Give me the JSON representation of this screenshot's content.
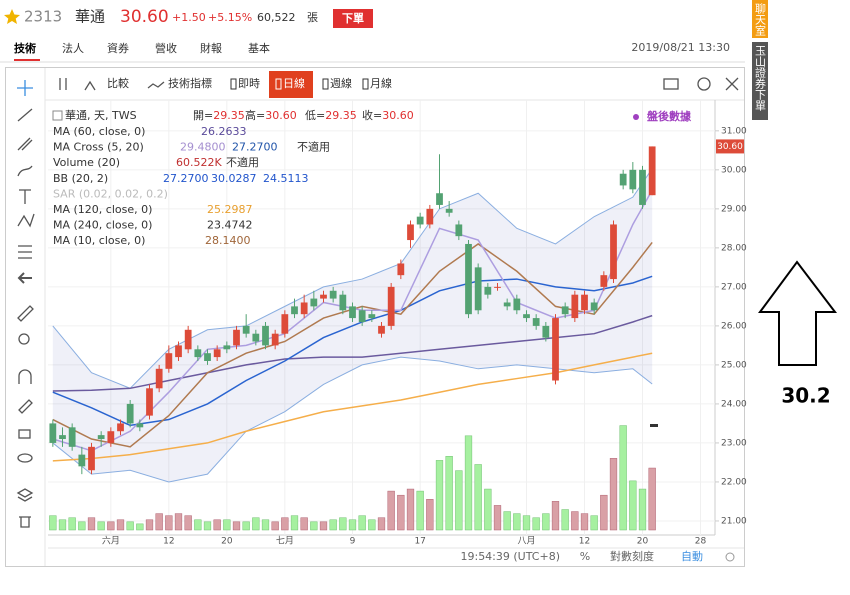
{
  "header": {
    "code": "2313",
    "name": "華通",
    "price": "30.60",
    "change": "+1.50",
    "percent": "+5.15%",
    "volume": "60,522",
    "volume_unit": "張",
    "order_button": "下單"
  },
  "tabs": [
    "技術",
    "法人",
    "資券",
    "營收",
    "財報",
    "基本"
  ],
  "datetime": "2019/08/21 13:30",
  "side": {
    "chat": "聊天室",
    "order": "玉山證券下單"
  },
  "toolbar": {
    "compare": "比較",
    "indicators": "技術指標",
    "intervals": [
      "即時",
      "日線",
      "週線",
      "月線"
    ],
    "active": 1
  },
  "annotation": "30.2",
  "chart_data": {
    "type": "candlestick",
    "title": "華通, 天, TWS",
    "ohlc_labels": [
      {
        "label": "開=",
        "value": "29.35"
      },
      {
        "label": "高=",
        "value": "30.60"
      },
      {
        "label": "低=",
        "value": "29.35"
      },
      {
        "label": "收=",
        "value": "30.60"
      }
    ],
    "after_hours": "盤後數據",
    "indicators": [
      {
        "label": "MA (60, close, 0)",
        "values": [
          "26.2633"
        ]
      },
      {
        "label": "MA Cross (5, 20)",
        "values": [
          "29.4800",
          "27.2700",
          "不適用"
        ]
      },
      {
        "label": "Volume (20)",
        "values": [
          "60.522K",
          "不適用"
        ]
      },
      {
        "label": "BB (20, 2)",
        "values": [
          "27.2700",
          "30.0287",
          "24.5113"
        ]
      },
      {
        "label": "SAR (0.02, 0.02, 0.2)",
        "values": []
      },
      {
        "label": "MA (120, close, 0)",
        "values": [
          "25.2987"
        ]
      },
      {
        "label": "MA (240, close, 0)",
        "values": [
          "23.4742"
        ]
      },
      {
        "label": "MA (10, close, 0)",
        "values": [
          "28.1400"
        ]
      }
    ],
    "open": [
      23.5,
      23.2,
      23.4,
      22.7,
      22.3,
      23.2,
      23.0,
      23.3,
      24.0,
      23.5,
      23.7,
      24.4,
      24.9,
      25.2,
      25.4,
      25.4,
      25.3,
      25.2,
      25.5,
      25.5,
      26.0,
      25.8,
      26.0,
      25.5,
      25.8,
      26.5,
      26.3,
      26.7,
      26.7,
      26.9,
      26.8,
      26.5,
      26.4,
      26.3,
      25.8,
      26.0,
      27.3,
      28.2,
      28.8,
      28.6,
      29.4,
      29.0,
      28.6,
      28.1,
      27.5,
      27.0,
      27.0,
      26.6,
      26.7,
      26.3,
      26.2,
      26.0,
      24.6,
      26.5,
      26.2,
      26.4,
      26.6,
      27.0,
      27.2,
      29.9,
      30.0,
      30.0,
      29.35
    ],
    "high": [
      23.6,
      23.4,
      23.5,
      22.9,
      23.0,
      23.3,
      23.4,
      23.6,
      24.1,
      23.6,
      24.5,
      25.0,
      25.5,
      25.6,
      26.0,
      25.5,
      25.4,
      25.5,
      25.6,
      26.0,
      26.3,
      25.9,
      26.1,
      25.9,
      26.4,
      26.7,
      26.8,
      26.9,
      26.9,
      27.0,
      26.9,
      26.6,
      26.5,
      26.4,
      26.1,
      27.1,
      27.7,
      28.7,
      28.9,
      29.1,
      30.4,
      29.2,
      28.7,
      28.2,
      27.6,
      27.1,
      27.1,
      26.7,
      26.8,
      26.4,
      26.3,
      26.1,
      26.3,
      26.6,
      26.9,
      26.9,
      26.7,
      27.4,
      28.7,
      30.0,
      30.2,
      30.1,
      30.6
    ],
    "low": [
      22.9,
      22.9,
      22.8,
      22.2,
      22.2,
      22.9,
      22.9,
      23.2,
      23.4,
      23.3,
      23.6,
      24.3,
      24.8,
      25.1,
      25.3,
      25.1,
      25.0,
      25.1,
      25.3,
      25.4,
      25.7,
      25.5,
      25.4,
      25.4,
      25.7,
      26.2,
      26.2,
      26.4,
      26.6,
      26.6,
      26.3,
      26.1,
      26.0,
      26.1,
      25.7,
      25.9,
      27.2,
      28.0,
      28.5,
      28.5,
      29.0,
      28.8,
      28.2,
      26.2,
      26.3,
      26.7,
      26.9,
      26.4,
      26.3,
      26.1,
      25.9,
      25.6,
      24.5,
      26.2,
      26.1,
      26.3,
      26.3,
      26.9,
      27.1,
      29.5,
      29.4,
      29.0,
      29.35
    ],
    "close": [
      23.0,
      23.1,
      22.9,
      22.4,
      22.9,
      23.1,
      23.3,
      23.5,
      23.5,
      23.4,
      24.4,
      24.9,
      25.3,
      25.5,
      25.9,
      25.2,
      25.1,
      25.4,
      25.4,
      25.9,
      25.8,
      25.6,
      25.5,
      25.8,
      26.3,
      26.3,
      26.6,
      26.5,
      26.8,
      26.7,
      26.4,
      26.2,
      26.1,
      26.2,
      26.0,
      27.0,
      27.6,
      28.6,
      28.6,
      29.0,
      29.1,
      28.9,
      28.3,
      26.3,
      26.4,
      26.8,
      27.0,
      26.5,
      26.4,
      26.2,
      26.0,
      25.7,
      26.2,
      26.3,
      26.8,
      26.8,
      26.4,
      27.3,
      28.6,
      29.6,
      29.5,
      29.1,
      30.6
    ],
    "volume": [
      14,
      10,
      12,
      8,
      12,
      8,
      8,
      10,
      8,
      6,
      10,
      16,
      14,
      16,
      14,
      10,
      8,
      10,
      10,
      8,
      8,
      12,
      10,
      8,
      12,
      14,
      12,
      8,
      8,
      10,
      12,
      10,
      14,
      10,
      12,
      38,
      34,
      40,
      38,
      30,
      68,
      72,
      58,
      92,
      64,
      40,
      24,
      18,
      16,
      14,
      12,
      16,
      28,
      20,
      18,
      16,
      14,
      34,
      70,
      102,
      48,
      40,
      60.522
    ],
    "up_color": "#dd4b39",
    "down_color": "#53a272",
    "volume_up_color": "#d9a0a6",
    "volume_down_color": "#a6f0a0",
    "lines": [
      {
        "name": "BB upper",
        "color": "#8aaee0",
        "x": [
          0,
          4,
          8,
          12,
          16,
          20,
          24,
          28,
          32,
          36,
          40,
          44,
          48,
          52,
          56,
          60,
          62
        ],
        "values": [
          26.0,
          24.8,
          24.4,
          25.4,
          25.9,
          26.0,
          26.5,
          27.0,
          27.2,
          27.6,
          29.0,
          29.4,
          28.5,
          28.1,
          28.8,
          29.3,
          30.0287
        ]
      },
      {
        "name": "BB lower",
        "color": "#8aaee0",
        "x": [
          0,
          4,
          8,
          12,
          16,
          20,
          24,
          28,
          32,
          36,
          40,
          44,
          48,
          52,
          56,
          60,
          62
        ],
        "values": [
          23.0,
          22.2,
          22.3,
          22.0,
          22.2,
          23.3,
          23.8,
          24.5,
          25.0,
          25.2,
          25.1,
          24.9,
          25.0,
          24.9,
          24.8,
          24.9,
          24.5113
        ]
      },
      {
        "name": "MA 120",
        "color": "#f5ae4a",
        "x": [
          0,
          4,
          8,
          12,
          16,
          20,
          24,
          28,
          32,
          36,
          40,
          44,
          48,
          52,
          56,
          60,
          62
        ],
        "values": [
          22.54,
          22.6,
          22.7,
          22.85,
          23.0,
          23.3,
          23.55,
          23.8,
          23.95,
          24.1,
          24.3,
          24.5,
          24.65,
          24.8,
          25.0,
          25.2,
          25.2987
        ]
      },
      {
        "name": "MA 60",
        "color": "#6a5a9e",
        "x": [
          0,
          4,
          8,
          12,
          16,
          20,
          24,
          28,
          32,
          36,
          40,
          44,
          48,
          52,
          56,
          60,
          62
        ],
        "values": [
          24.33,
          24.35,
          24.4,
          24.6,
          24.8,
          25.0,
          25.15,
          25.2,
          25.2,
          25.3,
          25.4,
          25.5,
          25.6,
          25.7,
          25.8,
          26.1,
          26.2633
        ]
      },
      {
        "name": "BB mid",
        "color": "#2a64d0",
        "x": [
          0,
          4,
          8,
          12,
          16,
          20,
          24,
          28,
          32,
          36,
          40,
          44,
          48,
          52,
          56,
          60,
          62
        ],
        "values": [
          24.3,
          23.9,
          23.45,
          23.6,
          24.0,
          24.6,
          25.1,
          25.7,
          26.1,
          26.4,
          26.9,
          27.15,
          27.2,
          27.0,
          26.9,
          27.1,
          27.27
        ]
      },
      {
        "name": "MA 10",
        "color": "#b07a50",
        "x": [
          0,
          4,
          8,
          12,
          16,
          20,
          24,
          28,
          32,
          36,
          40,
          44,
          48,
          52,
          56,
          60,
          62
        ],
        "values": [
          23.6,
          23.1,
          22.9,
          23.7,
          24.8,
          25.3,
          25.6,
          26.2,
          26.5,
          26.3,
          27.4,
          28.1,
          27.4,
          26.5,
          26.3,
          27.5,
          28.14
        ]
      },
      {
        "name": "MA 5",
        "color": "#ad9ee0",
        "x": [
          0,
          4,
          8,
          12,
          16,
          20,
          24,
          28,
          32,
          36,
          40,
          44,
          48,
          52,
          56,
          60,
          62
        ],
        "values": [
          23.1,
          22.8,
          23.3,
          24.3,
          25.4,
          25.5,
          25.8,
          26.6,
          26.4,
          26.4,
          28.5,
          28.2,
          26.6,
          26.2,
          26.4,
          28.6,
          29.48
        ]
      }
    ],
    "last_price": {
      "value": 30.6,
      "label": "30.60"
    },
    "xlim": [
      -0.5,
      68.5
    ],
    "xticks": [
      {
        "value": 6,
        "label": "六月"
      },
      {
        "value": 12,
        "label": "12"
      },
      {
        "value": 18,
        "label": "20"
      },
      {
        "value": 24,
        "label": "七月"
      },
      {
        "value": 31,
        "label": "9"
      },
      {
        "value": 38,
        "label": "17"
      },
      {
        "value": 49,
        "label": "八月"
      },
      {
        "value": 55,
        "label": "12"
      },
      {
        "value": 61,
        "label": "20"
      },
      {
        "value": 67,
        "label": "28"
      }
    ],
    "ylim": [
      20.64,
      31.79
    ],
    "yticks": [
      {
        "value": 21,
        "label": "21.00"
      },
      {
        "value": 22,
        "label": "22.00"
      },
      {
        "value": 23,
        "label": "23.00"
      },
      {
        "value": 24,
        "label": "24.00"
      },
      {
        "value": 25,
        "label": "25.00"
      },
      {
        "value": 26,
        "label": "26.00"
      },
      {
        "value": 27,
        "label": "27.00"
      },
      {
        "value": 28,
        "label": "28.00"
      },
      {
        "value": 29,
        "label": "29.00"
      },
      {
        "value": 30,
        "label": "30.00"
      },
      {
        "value": 31,
        "label": "31.00"
      }
    ],
    "volume_ylim": [
      0,
      420
    ],
    "grid": true
  },
  "status": {
    "time": "19:54:39 (UTC+8)",
    "percent": "%",
    "log": "對數刻度",
    "auto": "自動"
  }
}
